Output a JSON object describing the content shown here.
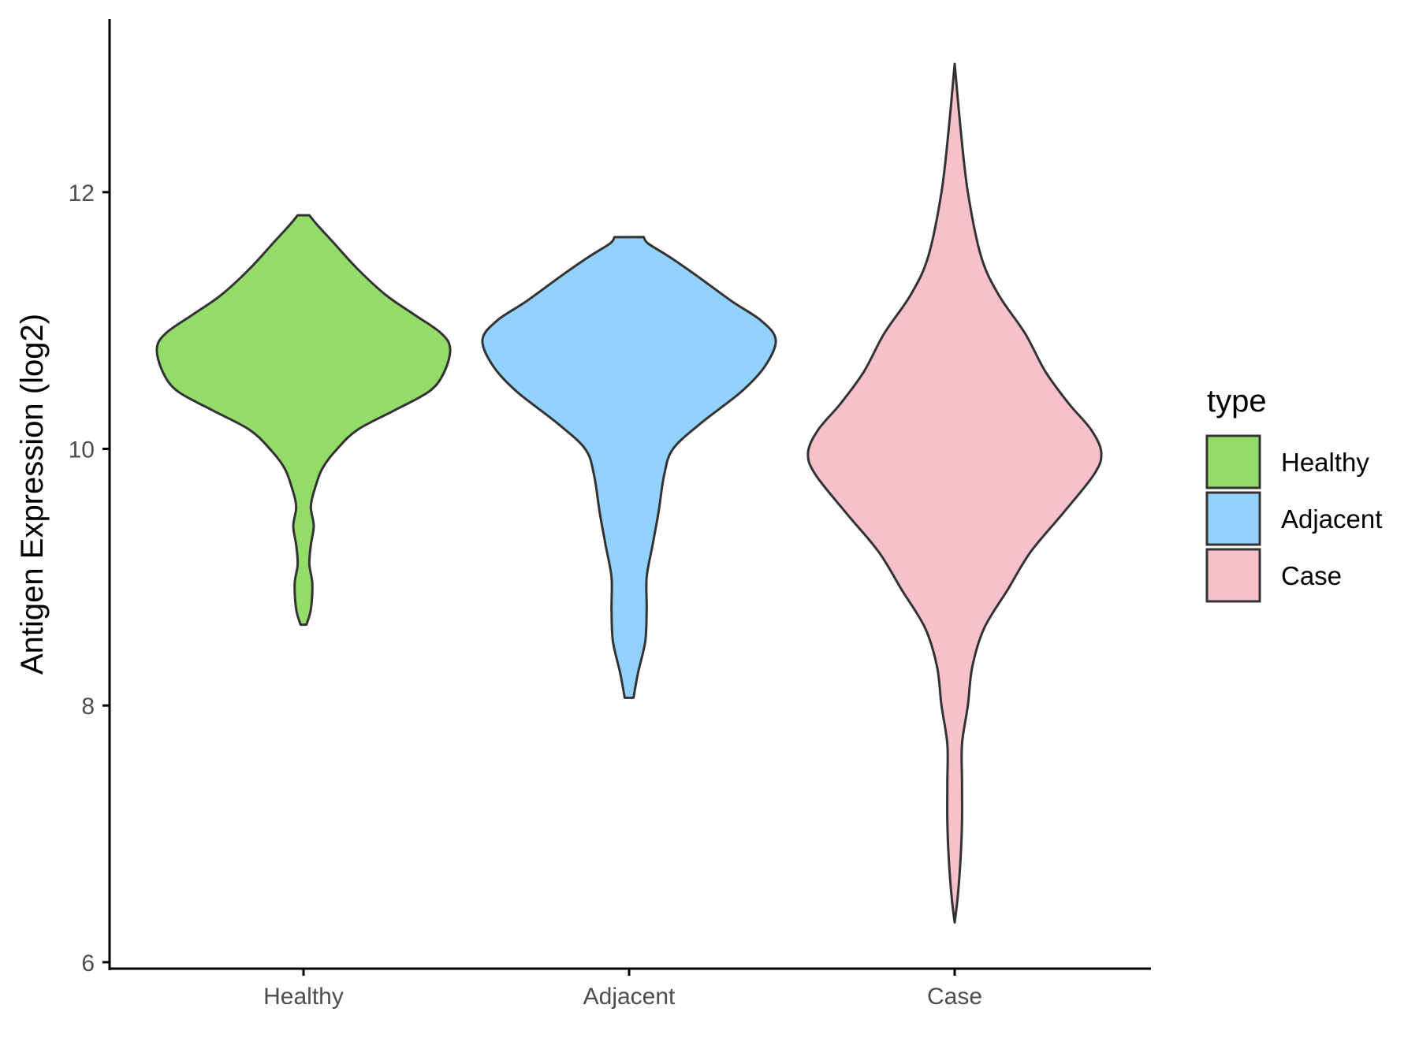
{
  "chart_data": {
    "type": "violin",
    "title": "",
    "xlabel": "",
    "ylabel": "Antigen Expression (log2)",
    "ylim": [
      5.95,
      13.35
    ],
    "yticks": [
      6,
      8,
      10,
      12
    ],
    "categories": [
      "Healthy",
      "Adjacent",
      "Case"
    ],
    "grid": false,
    "legend": {
      "title": "type",
      "position": "right",
      "entries": [
        "Healthy",
        "Adjacent",
        "Case"
      ]
    },
    "colors": {
      "Healthy": "#93dc6a",
      "Adjacent": "#93d2fe",
      "Case": "#f7c1cc",
      "outline": "#333333"
    },
    "series": [
      {
        "category": "Healthy",
        "min": 8.63,
        "max": 11.82,
        "density_profile": [
          [
            8.63,
            0.02
          ],
          [
            8.75,
            0.05
          ],
          [
            8.95,
            0.06
          ],
          [
            9.1,
            0.04
          ],
          [
            9.25,
            0.05
          ],
          [
            9.4,
            0.07
          ],
          [
            9.55,
            0.05
          ],
          [
            9.7,
            0.08
          ],
          [
            9.85,
            0.13
          ],
          [
            10.0,
            0.23
          ],
          [
            10.15,
            0.37
          ],
          [
            10.3,
            0.62
          ],
          [
            10.45,
            0.86
          ],
          [
            10.6,
            0.96
          ],
          [
            10.78,
            1.0
          ],
          [
            10.9,
            0.94
          ],
          [
            11.05,
            0.75
          ],
          [
            11.2,
            0.56
          ],
          [
            11.4,
            0.37
          ],
          [
            11.6,
            0.21
          ],
          [
            11.75,
            0.09
          ],
          [
            11.82,
            0.04
          ]
        ]
      },
      {
        "category": "Adjacent",
        "min": 8.06,
        "max": 11.65,
        "density_profile": [
          [
            8.06,
            0.03
          ],
          [
            8.25,
            0.06
          ],
          [
            8.5,
            0.11
          ],
          [
            8.75,
            0.12
          ],
          [
            9.0,
            0.12
          ],
          [
            9.25,
            0.16
          ],
          [
            9.5,
            0.2
          ],
          [
            9.8,
            0.24
          ],
          [
            10.0,
            0.3
          ],
          [
            10.2,
            0.49
          ],
          [
            10.45,
            0.77
          ],
          [
            10.65,
            0.93
          ],
          [
            10.85,
            1.0
          ],
          [
            11.0,
            0.9
          ],
          [
            11.15,
            0.7
          ],
          [
            11.35,
            0.46
          ],
          [
            11.5,
            0.27
          ],
          [
            11.6,
            0.13
          ],
          [
            11.65,
            0.1
          ]
        ]
      },
      {
        "category": "Case",
        "min": 6.31,
        "max": 13.0,
        "density_profile": [
          [
            6.31,
            0.0
          ],
          [
            6.5,
            0.02
          ],
          [
            6.8,
            0.04
          ],
          [
            7.1,
            0.05
          ],
          [
            7.4,
            0.05
          ],
          [
            7.7,
            0.05
          ],
          [
            8.0,
            0.09
          ],
          [
            8.3,
            0.12
          ],
          [
            8.6,
            0.2
          ],
          [
            8.9,
            0.36
          ],
          [
            9.2,
            0.52
          ],
          [
            9.5,
            0.74
          ],
          [
            9.8,
            0.95
          ],
          [
            9.97,
            1.0
          ],
          [
            10.15,
            0.93
          ],
          [
            10.35,
            0.78
          ],
          [
            10.6,
            0.62
          ],
          [
            10.9,
            0.48
          ],
          [
            11.2,
            0.3
          ],
          [
            11.5,
            0.18
          ],
          [
            12.0,
            0.09
          ],
          [
            12.5,
            0.04
          ],
          [
            13.0,
            0.0
          ]
        ]
      }
    ]
  }
}
